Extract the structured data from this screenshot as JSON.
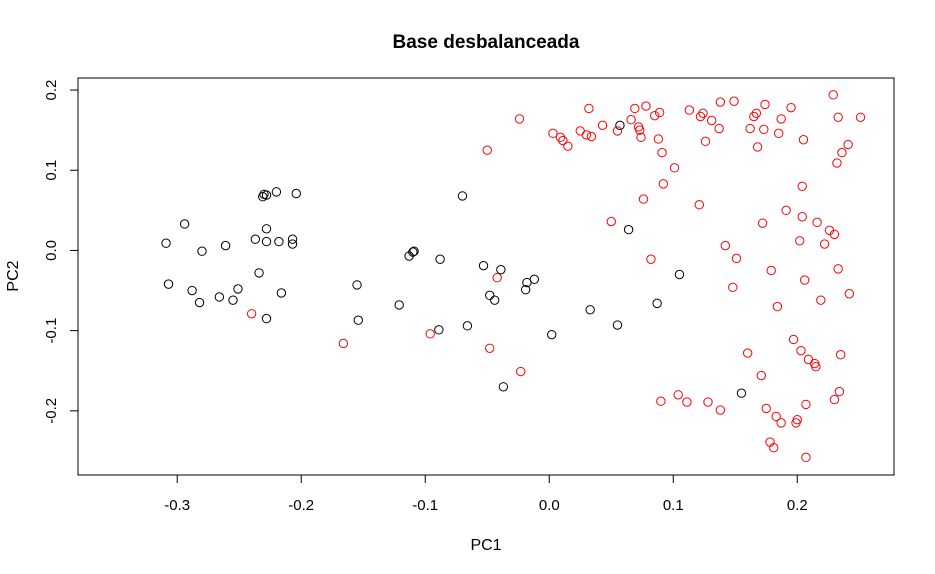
{
  "colors": {
    "class_a": "#000000",
    "class_b": "#ff0000"
  },
  "chart_data": {
    "type": "scatter",
    "title": "Base desbalanceada",
    "xlabel": "PC1",
    "ylabel": "PC2",
    "xlim": [
      -0.38,
      0.278
    ],
    "ylim": [
      -0.28,
      0.215
    ],
    "xticks": [
      -0.3,
      -0.2,
      -0.1,
      0.0,
      0.1,
      0.2
    ],
    "xtick_labels": [
      "-0.3",
      "-0.2",
      "-0.1",
      "0.0",
      "0.1",
      "0.2"
    ],
    "yticks": [
      -0.2,
      -0.1,
      0.0,
      0.1,
      0.2
    ],
    "ytick_labels": [
      "-0.2",
      "-0.1",
      "0.0",
      "0.1",
      "0.2"
    ],
    "grid": false,
    "legend": "none",
    "marker": "open-circle",
    "series": [
      {
        "color": "#000000",
        "points": [
          [
            -0.309,
            0.009
          ],
          [
            -0.307,
            -0.042
          ],
          [
            -0.294,
            0.033
          ],
          [
            -0.288,
            -0.05
          ],
          [
            -0.282,
            -0.065
          ],
          [
            -0.28,
            -0.001
          ],
          [
            -0.266,
            -0.058
          ],
          [
            -0.261,
            0.006
          ],
          [
            -0.255,
            -0.062
          ],
          [
            -0.251,
            -0.048
          ],
          [
            -0.237,
            0.014
          ],
          [
            -0.234,
            -0.028
          ],
          [
            -0.231,
            0.067
          ],
          [
            -0.23,
            0.07
          ],
          [
            -0.228,
            0.069
          ],
          [
            -0.228,
            0.027
          ],
          [
            -0.228,
            0.011
          ],
          [
            -0.228,
            -0.085
          ],
          [
            -0.22,
            0.073
          ],
          [
            -0.218,
            0.011
          ],
          [
            -0.216,
            -0.053
          ],
          [
            -0.207,
            0.008
          ],
          [
            -0.207,
            0.014
          ],
          [
            -0.204,
            0.071
          ],
          [
            -0.155,
            -0.043
          ],
          [
            -0.154,
            -0.087
          ],
          [
            -0.121,
            -0.068
          ],
          [
            -0.113,
            -0.007
          ],
          [
            -0.11,
            -0.002
          ],
          [
            -0.109,
            -0.001
          ],
          [
            -0.088,
            -0.011
          ],
          [
            -0.089,
            -0.099
          ],
          [
            -0.07,
            0.068
          ],
          [
            -0.066,
            -0.094
          ],
          [
            -0.053,
            -0.019
          ],
          [
            -0.048,
            -0.056
          ],
          [
            -0.044,
            -0.062
          ],
          [
            -0.039,
            -0.024
          ],
          [
            -0.037,
            -0.17
          ],
          [
            -0.019,
            -0.049
          ],
          [
            -0.018,
            -0.04
          ],
          [
            -0.012,
            -0.036
          ],
          [
            0.002,
            -0.105
          ],
          [
            0.033,
            -0.074
          ],
          [
            0.055,
            -0.093
          ],
          [
            0.057,
            0.156
          ],
          [
            0.064,
            0.026
          ],
          [
            0.087,
            -0.066
          ],
          [
            0.105,
            -0.03
          ],
          [
            0.155,
            -0.178
          ]
        ]
      },
      {
        "color": "#ff0000",
        "points": [
          [
            -0.24,
            -0.079
          ],
          [
            -0.166,
            -0.116
          ],
          [
            -0.096,
            -0.104
          ],
          [
            -0.05,
            0.125
          ],
          [
            -0.048,
            -0.122
          ],
          [
            -0.042,
            -0.034
          ],
          [
            -0.023,
            -0.151
          ],
          [
            -0.024,
            0.164
          ],
          [
            0.003,
            0.146
          ],
          [
            0.009,
            0.141
          ],
          [
            0.011,
            0.137
          ],
          [
            0.015,
            0.13
          ],
          [
            0.025,
            0.149
          ],
          [
            0.03,
            0.144
          ],
          [
            0.032,
            0.177
          ],
          [
            0.034,
            0.142
          ],
          [
            0.043,
            0.156
          ],
          [
            0.05,
            0.036
          ],
          [
            0.055,
            0.149
          ],
          [
            0.066,
            0.163
          ],
          [
            0.069,
            0.177
          ],
          [
            0.072,
            0.154
          ],
          [
            0.073,
            0.15
          ],
          [
            0.074,
            0.141
          ],
          [
            0.076,
            0.064
          ],
          [
            0.078,
            0.18
          ],
          [
            0.082,
            -0.011
          ],
          [
            0.085,
            0.168
          ],
          [
            0.088,
            0.139
          ],
          [
            0.089,
            0.172
          ],
          [
            0.09,
            -0.188
          ],
          [
            0.091,
            0.122
          ],
          [
            0.092,
            0.083
          ],
          [
            0.101,
            0.103
          ],
          [
            0.104,
            -0.18
          ],
          [
            0.111,
            -0.189
          ],
          [
            0.113,
            0.175
          ],
          [
            0.121,
            0.057
          ],
          [
            0.122,
            0.167
          ],
          [
            0.124,
            0.171
          ],
          [
            0.126,
            0.136
          ],
          [
            0.128,
            -0.189
          ],
          [
            0.131,
            0.162
          ],
          [
            0.137,
            0.152
          ],
          [
            0.138,
            0.185
          ],
          [
            0.138,
            -0.199
          ],
          [
            0.142,
            0.006
          ],
          [
            0.148,
            -0.046
          ],
          [
            0.149,
            0.186
          ],
          [
            0.151,
            -0.01
          ],
          [
            0.16,
            -0.128
          ],
          [
            0.162,
            0.152
          ],
          [
            0.165,
            0.167
          ],
          [
            0.167,
            0.171
          ],
          [
            0.168,
            0.129
          ],
          [
            0.171,
            -0.156
          ],
          [
            0.172,
            0.034
          ],
          [
            0.173,
            0.151
          ],
          [
            0.174,
            0.182
          ],
          [
            0.175,
            -0.197
          ],
          [
            0.178,
            -0.239
          ],
          [
            0.179,
            -0.025
          ],
          [
            0.181,
            -0.246
          ],
          [
            0.183,
            -0.207
          ],
          [
            0.184,
            -0.07
          ],
          [
            0.185,
            0.146
          ],
          [
            0.187,
            0.164
          ],
          [
            0.187,
            -0.215
          ],
          [
            0.191,
            0.05
          ],
          [
            0.195,
            0.178
          ],
          [
            0.197,
            -0.111
          ],
          [
            0.199,
            -0.215
          ],
          [
            0.2,
            -0.211
          ],
          [
            0.202,
            0.012
          ],
          [
            0.203,
            -0.125
          ],
          [
            0.204,
            0.08
          ],
          [
            0.204,
            0.042
          ],
          [
            0.205,
            0.138
          ],
          [
            0.206,
            -0.037
          ],
          [
            0.207,
            -0.258
          ],
          [
            0.207,
            -0.192
          ],
          [
            0.209,
            -0.136
          ],
          [
            0.214,
            -0.141
          ],
          [
            0.215,
            -0.145
          ],
          [
            0.216,
            0.035
          ],
          [
            0.219,
            -0.062
          ],
          [
            0.222,
            0.008
          ],
          [
            0.226,
            0.025
          ],
          [
            0.229,
            0.194
          ],
          [
            0.23,
            0.02
          ],
          [
            0.23,
            -0.186
          ],
          [
            0.232,
            0.109
          ],
          [
            0.233,
            0.166
          ],
          [
            0.233,
            -0.023
          ],
          [
            0.234,
            -0.176
          ],
          [
            0.235,
            -0.13
          ],
          [
            0.236,
            0.122
          ],
          [
            0.241,
            0.132
          ],
          [
            0.242,
            -0.054
          ],
          [
            0.251,
            0.166
          ]
        ]
      }
    ]
  }
}
